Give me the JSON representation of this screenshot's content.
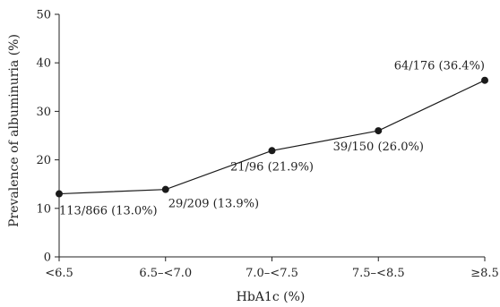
{
  "chart_data": {
    "type": "line",
    "title": "",
    "xlabel": "HbA1c (%)",
    "ylabel": "Prevalence of albuminuria (%)",
    "categories": [
      "<6.5",
      "6.5–<7.0",
      "7.0–<7.5",
      "7.5–<8.5",
      "≥8.5"
    ],
    "ylim": [
      0,
      50
    ],
    "yticks": [
      0,
      10,
      20,
      30,
      40,
      50
    ],
    "grid": false,
    "series": [
      {
        "values": [
          13.0,
          13.9,
          21.9,
          26.0,
          36.4
        ],
        "labels": [
          "113/866 (13.0%)",
          "29/209 (13.9%)",
          "21/96 (21.9%)",
          "39/150 (26.0%)",
          "64/176 (36.4%)"
        ],
        "color": "#1a1a1a"
      }
    ]
  }
}
